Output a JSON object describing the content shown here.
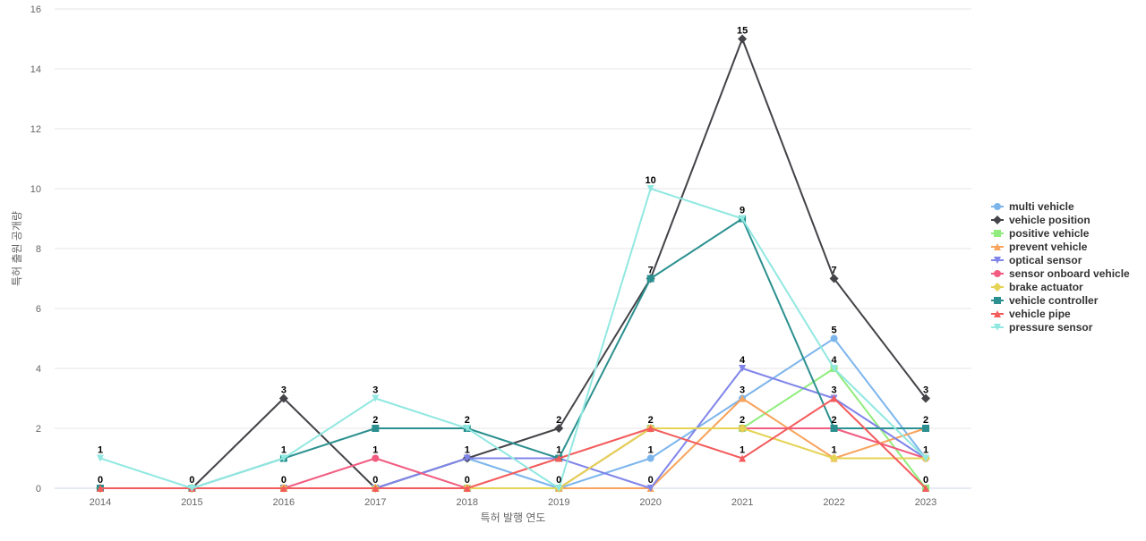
{
  "chart_data": {
    "type": "line",
    "title": "",
    "xlabel": "특허 발행 연도",
    "ylabel": "특허 출원 공개량",
    "x": [
      "2014",
      "2015",
      "2016",
      "2017",
      "2018",
      "2019",
      "2020",
      "2021",
      "2022",
      "2023"
    ],
    "ylim": [
      0,
      16
    ],
    "yticks": [
      0,
      2,
      4,
      6,
      8,
      10,
      12,
      14,
      16
    ],
    "grid": "horizontal",
    "legend_position": "right",
    "series": [
      {
        "name": "multi vehicle",
        "marker": "circle",
        "color": "#7cb5ec",
        "values": [
          0,
          0,
          0,
          0,
          1,
          0,
          1,
          3,
          5,
          1
        ]
      },
      {
        "name": "vehicle position",
        "marker": "diamond",
        "color": "#434348",
        "values": [
          0,
          0,
          3,
          0,
          1,
          2,
          7,
          15,
          7,
          3
        ]
      },
      {
        "name": "positive vehicle",
        "marker": "square",
        "color": "#90ed7d",
        "values": [
          0,
          0,
          0,
          0,
          0,
          0,
          2,
          2,
          4,
          0
        ]
      },
      {
        "name": "prevent vehicle",
        "marker": "triangle",
        "color": "#f7a35c",
        "values": [
          0,
          0,
          0,
          0,
          0,
          0,
          0,
          3,
          1,
          2
        ]
      },
      {
        "name": "optical sensor",
        "marker": "triangle-down",
        "color": "#8085e9",
        "values": [
          0,
          0,
          0,
          0,
          1,
          1,
          0,
          4,
          3,
          1
        ]
      },
      {
        "name": "sensor onboard vehicle",
        "marker": "circle",
        "color": "#f15c80",
        "values": [
          0,
          0,
          0,
          1,
          0,
          0,
          2,
          2,
          2,
          1
        ]
      },
      {
        "name": "brake actuator",
        "marker": "diamond",
        "color": "#e4d354",
        "values": [
          0,
          0,
          0,
          0,
          0,
          0,
          2,
          2,
          1,
          1
        ]
      },
      {
        "name": "vehicle controller",
        "marker": "square",
        "color": "#2b908f",
        "values": [
          0,
          0,
          1,
          2,
          2,
          1,
          7,
          9,
          2,
          2
        ]
      },
      {
        "name": "vehicle pipe",
        "marker": "triangle",
        "color": "#f45b5b",
        "values": [
          0,
          0,
          0,
          0,
          0,
          1,
          2,
          1,
          3,
          0
        ]
      },
      {
        "name": "pressure sensor",
        "marker": "triangle-down",
        "color": "#91e8e1",
        "values": [
          1,
          0,
          1,
          3,
          2,
          0,
          10,
          9,
          4,
          1
        ]
      }
    ],
    "data_labels": {
      "2014": "0",
      "2015": "0",
      "2016": "0",
      "2017": "0",
      "2018": "0",
      "2019": "0",
      "2020": "0",
      "2021": "1",
      "2022": "1",
      "2023": "0"
    }
  }
}
